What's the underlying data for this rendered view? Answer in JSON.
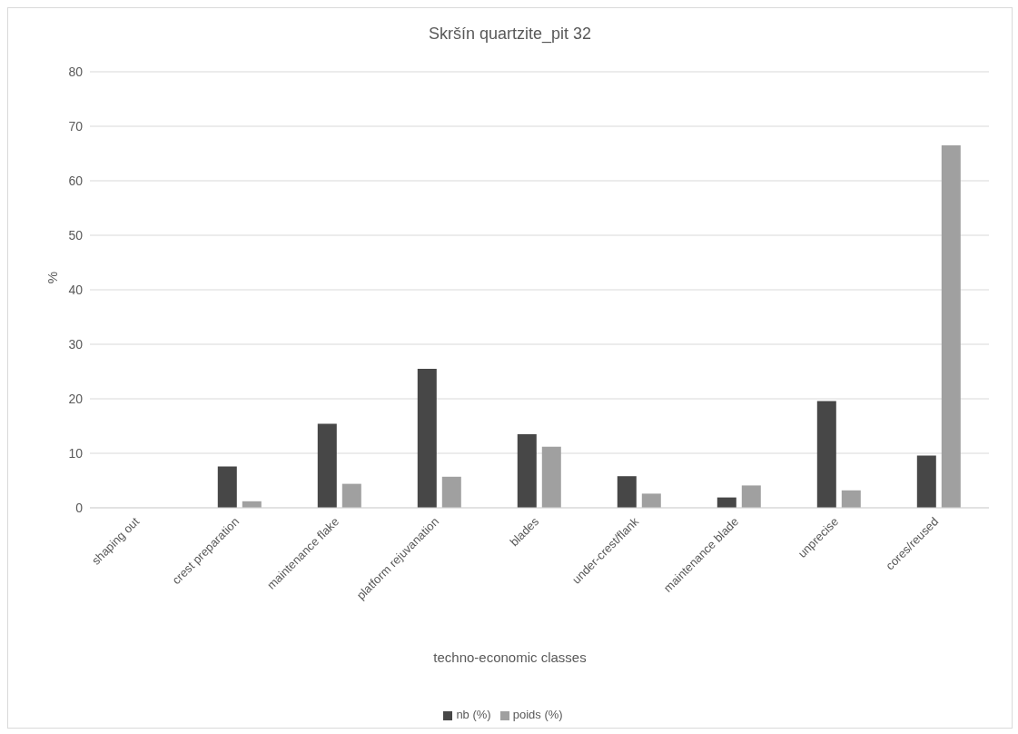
{
  "chart_data": {
    "type": "bar",
    "title": "Skršín quartzite_pit 32",
    "xlabel": "techno-economic classes",
    "ylabel": "%",
    "categories": [
      "shaping out",
      "crest preparation",
      "maintenance flake",
      "platform rejuvanation",
      "blades",
      "under-crest/flank",
      "maintenance blade",
      "unprecise",
      "cores/reused"
    ],
    "series": [
      {
        "name": "nb (%)",
        "color": "#474747",
        "values": [
          0,
          7.6,
          15.4,
          25.5,
          13.5,
          5.8,
          1.9,
          19.6,
          9.6
        ]
      },
      {
        "name": "poids (%)",
        "color": "#a0a0a0",
        "values": [
          0,
          1.2,
          4.4,
          5.7,
          11.2,
          2.6,
          4.1,
          3.2,
          66.5
        ]
      }
    ],
    "ylim": [
      0,
      80
    ],
    "yticks": [
      0,
      10,
      20,
      30,
      40,
      50,
      60,
      70,
      80
    ],
    "grid": "y",
    "legend": "bottom"
  }
}
